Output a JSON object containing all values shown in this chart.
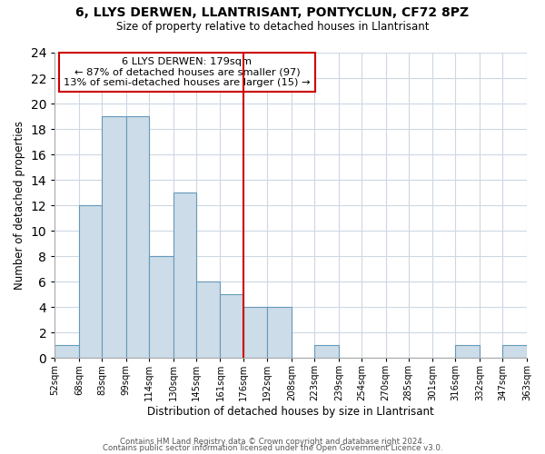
{
  "title": "6, LLYS DERWEN, LLANTRISANT, PONTYCLUN, CF72 8PZ",
  "subtitle": "Size of property relative to detached houses in Llantrisant",
  "xlabel": "Distribution of detached houses by size in Llantrisant",
  "ylabel": "Number of detached properties",
  "bin_edges": [
    52,
    68,
    83,
    99,
    114,
    130,
    145,
    161,
    176,
    192,
    208,
    223,
    239,
    254,
    270,
    285,
    301,
    316,
    332,
    347,
    363
  ],
  "bar_heights": [
    1,
    12,
    19,
    19,
    8,
    13,
    6,
    5,
    4,
    4,
    0,
    1,
    0,
    0,
    0,
    0,
    0,
    1,
    0,
    1
  ],
  "bar_color": "#ccdce8",
  "bar_edgecolor": "#6699bb",
  "reference_line_x": 176,
  "reference_line_color": "#cc0000",
  "ylim": [
    0,
    24
  ],
  "yticks": [
    0,
    2,
    4,
    6,
    8,
    10,
    12,
    14,
    16,
    18,
    20,
    22,
    24
  ],
  "tick_labels": [
    "52sqm",
    "68sqm",
    "83sqm",
    "99sqm",
    "114sqm",
    "130sqm",
    "145sqm",
    "161sqm",
    "176sqm",
    "192sqm",
    "208sqm",
    "223sqm",
    "239sqm",
    "254sqm",
    "270sqm",
    "285sqm",
    "301sqm",
    "316sqm",
    "332sqm",
    "347sqm",
    "363sqm"
  ],
  "annotation_title": "6 LLYS DERWEN: 179sqm",
  "annotation_line1": "← 87% of detached houses are smaller (97)",
  "annotation_line2": "13% of semi-detached houses are larger (15) →",
  "annotation_box_edgecolor": "#cc0000",
  "footer1": "Contains HM Land Registry data © Crown copyright and database right 2024.",
  "footer2": "Contains public sector information licensed under the Open Government Licence v3.0.",
  "background_color": "#ffffff",
  "grid_color": "#ccd8e4"
}
